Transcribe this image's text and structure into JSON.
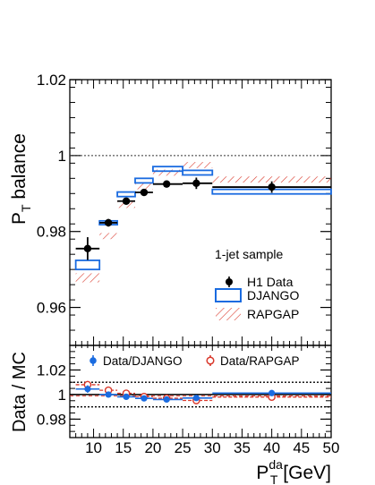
{
  "chart_data": [
    {
      "type": "scatter",
      "panel": "main",
      "xlim": [
        6,
        50
      ],
      "ylim": [
        0.95,
        1.02
      ],
      "ylabel_main": "P",
      "ylabel_sub": "T",
      "ylabel_rest": " balance",
      "y_ticks": [
        0.96,
        0.98,
        1,
        1.02
      ],
      "y_tick_labels": [
        "0.96",
        "0.98",
        "1",
        "1.02"
      ],
      "reference_line": 1,
      "legend_placement": "lower-right",
      "legend_title": "1-jet sample",
      "series": [
        {
          "name": "H1 Data",
          "marker": "filled-circle",
          "color": "#000000",
          "points": [
            {
              "x": 9.0,
              "xlo": 7.0,
              "xhi": 11.0,
              "y": 0.9755,
              "err": 0.003
            },
            {
              "x": 12.5,
              "xlo": 11.0,
              "xhi": 14.0,
              "y": 0.9823,
              "err": 0.001
            },
            {
              "x": 15.5,
              "xlo": 14.0,
              "xhi": 17.0,
              "y": 0.988,
              "err": 0.0008
            },
            {
              "x": 18.5,
              "xlo": 17.0,
              "xhi": 20.0,
              "y": 0.9903,
              "err": 0.0008
            },
            {
              "x": 22.3,
              "xlo": 20.0,
              "xhi": 25.0,
              "y": 0.9925,
              "err": 0.0009
            },
            {
              "x": 27.3,
              "xlo": 25.0,
              "xhi": 30.0,
              "y": 0.9927,
              "err": 0.0015
            },
            {
              "x": 40.0,
              "xlo": 30.0,
              "xhi": 50.0,
              "y": 0.9917,
              "err": 0.0015
            }
          ]
        },
        {
          "name": "DJANGO",
          "style": "open-box",
          "color": "#1a6be0",
          "bins": [
            {
              "xlo": 7.0,
              "xhi": 11.0,
              "y": 0.9712,
              "half": 0.0012
            },
            {
              "xlo": 11.0,
              "xhi": 14.0,
              "y": 0.9823,
              "half": 0.0005
            },
            {
              "xlo": 14.0,
              "xhi": 17.0,
              "y": 0.9898,
              "half": 0.0006
            },
            {
              "xlo": 17.0,
              "xhi": 20.0,
              "y": 0.9934,
              "half": 0.0006
            },
            {
              "xlo": 20.0,
              "xhi": 25.0,
              "y": 0.9965,
              "half": 0.0006
            },
            {
              "xlo": 25.0,
              "xhi": 30.0,
              "y": 0.9955,
              "half": 0.0006
            },
            {
              "xlo": 30.0,
              "xhi": 50.0,
              "y": 0.9905,
              "half": 0.0006
            }
          ]
        },
        {
          "name": "RAPGAP",
          "style": "hatched-band",
          "color": "#d9382b",
          "bins": [
            {
              "xlo": 7.0,
              "xhi": 11.0,
              "y": 0.9678,
              "half": 0.0012
            },
            {
              "xlo": 11.0,
              "xhi": 14.0,
              "y": 0.9788,
              "half": 0.0008
            },
            {
              "xlo": 14.0,
              "xhi": 17.0,
              "y": 0.987,
              "half": 0.0008
            },
            {
              "xlo": 17.0,
              "xhi": 20.0,
              "y": 0.9919,
              "half": 0.0008
            },
            {
              "xlo": 20.0,
              "xhi": 25.0,
              "y": 0.9955,
              "half": 0.0008
            },
            {
              "xlo": 25.0,
              "xhi": 30.0,
              "y": 0.9975,
              "half": 0.0008
            },
            {
              "xlo": 30.0,
              "xhi": 50.0,
              "y": 0.9937,
              "half": 0.0008
            }
          ]
        }
      ]
    },
    {
      "type": "scatter",
      "panel": "ratio",
      "xlim": [
        6,
        50
      ],
      "ylim": [
        0.965,
        1.04
      ],
      "ylabel": "Data / MC",
      "xlabel_main": "P",
      "xlabel_sup": "da",
      "xlabel_sub": "T",
      "xlabel_rest": " [GeV]",
      "x_ticks": [
        10,
        15,
        20,
        25,
        30,
        35,
        40,
        45,
        50
      ],
      "x_tick_labels": [
        "10",
        "15",
        "20",
        "25",
        "30",
        "35",
        "40",
        "45",
        "50"
      ],
      "y_ticks": [
        0.98,
        1,
        1.02
      ],
      "y_tick_labels": [
        "0.98",
        "1",
        "1.02"
      ],
      "reference_line": 1,
      "band_lines": [
        0.99,
        1.01
      ],
      "legend_placement": "top",
      "series": [
        {
          "name": "Data/DJANGO",
          "marker": "filled-circle",
          "color": "#1a6be0",
          "points": [
            {
              "x": 9.0,
              "xlo": 7.0,
              "xhi": 11.0,
              "y": 1.0045,
              "err": 0.003
            },
            {
              "x": 12.5,
              "xlo": 11.0,
              "xhi": 14.0,
              "y": 1.0,
              "err": 0.001
            },
            {
              "x": 15.5,
              "xlo": 14.0,
              "xhi": 17.0,
              "y": 0.9982,
              "err": 0.0008
            },
            {
              "x": 18.5,
              "xlo": 17.0,
              "xhi": 20.0,
              "y": 0.9969,
              "err": 0.0008
            },
            {
              "x": 22.3,
              "xlo": 20.0,
              "xhi": 25.0,
              "y": 0.996,
              "err": 0.0009
            },
            {
              "x": 27.3,
              "xlo": 25.0,
              "xhi": 30.0,
              "y": 0.9972,
              "err": 0.0015
            },
            {
              "x": 40.0,
              "xlo": 30.0,
              "xhi": 50.0,
              "y": 1.0012,
              "err": 0.0015
            }
          ]
        },
        {
          "name": "Data/RAPGAP",
          "marker": "open-circle",
          "color": "#d9382b",
          "points": [
            {
              "x": 9.0,
              "xlo": 7.0,
              "xhi": 11.0,
              "y": 1.008,
              "err": 0.003
            },
            {
              "x": 12.5,
              "xlo": 11.0,
              "xhi": 14.0,
              "y": 1.0035,
              "err": 0.001
            },
            {
              "x": 15.5,
              "xlo": 14.0,
              "xhi": 17.0,
              "y": 1.001,
              "err": 0.0008
            },
            {
              "x": 18.5,
              "xlo": 17.0,
              "xhi": 20.0,
              "y": 0.9984,
              "err": 0.0008
            },
            {
              "x": 22.3,
              "xlo": 20.0,
              "xhi": 25.0,
              "y": 0.997,
              "err": 0.0009
            },
            {
              "x": 27.3,
              "xlo": 25.0,
              "xhi": 30.0,
              "y": 0.9952,
              "err": 0.0015
            },
            {
              "x": 40.0,
              "xlo": 30.0,
              "xhi": 50.0,
              "y": 0.998,
              "err": 0.0015
            }
          ]
        }
      ]
    }
  ]
}
